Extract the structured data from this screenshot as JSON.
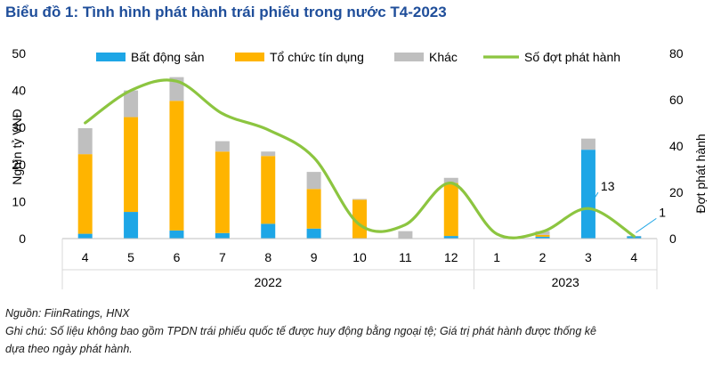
{
  "title": "Biểu đồ 1: Tình hình phát hành trái phiếu trong nước T4-2023",
  "source": "Nguồn: FiinRatings, HNX",
  "note_line1": "Ghi chú: Số liệu không bao gồm TPDN trái phiếu quốc tế được huy động bằng ngoại tệ; Giá trị phát hành được thống kê",
  "note_line2": "dựa theo ngày phát hành.",
  "chart_data": {
    "type": "bar",
    "stacked": true,
    "categories": [
      "4",
      "5",
      "6",
      "7",
      "8",
      "9",
      "10",
      "11",
      "12",
      "1",
      "2",
      "3",
      "4"
    ],
    "groups": [
      {
        "label": "2022",
        "count": 9
      },
      {
        "label": "2023",
        "count": 4
      }
    ],
    "series": [
      {
        "name": "Bất động sản",
        "color": "#1ea6e6",
        "values": [
          1.3,
          7.2,
          2.2,
          1.5,
          4.0,
          2.7,
          0,
          0,
          0.7,
          0,
          0.5,
          24.0,
          0.6
        ]
      },
      {
        "name": "Tổ chức tín dụng",
        "color": "#ffb400",
        "values": [
          21.5,
          25.6,
          35.0,
          22.0,
          18.3,
          10.7,
          10.5,
          0,
          14.3,
          0,
          0.5,
          0,
          0
        ]
      },
      {
        "name": "Khác",
        "color": "#bfbfbf",
        "values": [
          7.0,
          7.2,
          6.4,
          2.8,
          1.2,
          4.6,
          0.2,
          2.0,
          1.4,
          0,
          1.0,
          3.0,
          0.1
        ]
      }
    ],
    "line": {
      "name": "Số đợt phát hành",
      "color": "#8cc540",
      "axis": "right",
      "values": [
        50,
        64,
        68,
        54,
        47,
        35,
        6,
        6,
        24,
        2,
        3,
        13,
        1
      ]
    },
    "line_labels": [
      {
        "index": 11,
        "text": "13"
      },
      {
        "index": 12,
        "text": "1"
      }
    ],
    "ylabel": "Nghìn tỷ VNĐ",
    "y2label": "Đợt phát hành",
    "ylim": [
      0,
      50
    ],
    "y2lim": [
      0,
      80
    ],
    "yticks": [
      "0",
      "10",
      "20",
      "30",
      "40",
      "50"
    ],
    "y2ticks": [
      "0",
      "20",
      "40",
      "60",
      "80"
    ],
    "legend_position": "top",
    "grid": false
  }
}
